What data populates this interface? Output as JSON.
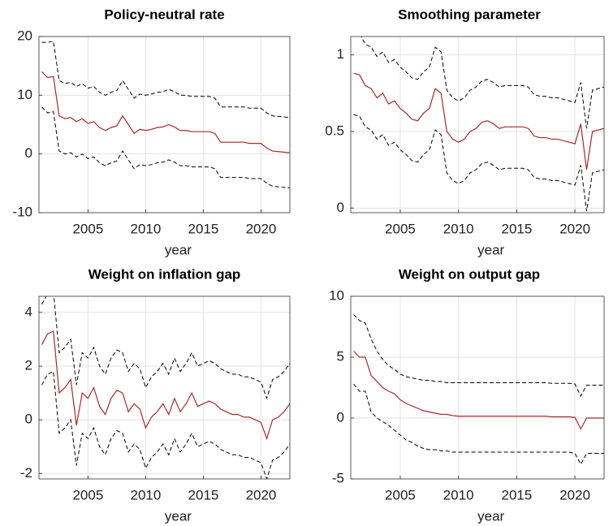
{
  "chart_data": [
    {
      "type": "line",
      "title": "Policy-neutral rate",
      "xlabel": "year",
      "x": [
        2001,
        2001.5,
        2002,
        2002.5,
        2003,
        2003.5,
        2004,
        2004.5,
        2005,
        2005.5,
        2006,
        2006.5,
        2007,
        2007.5,
        2008,
        2008.5,
        2009,
        2009.5,
        2010,
        2010.5,
        2011,
        2011.5,
        2012,
        2012.5,
        2013,
        2013.5,
        2014,
        2014.5,
        2015,
        2015.5,
        2016,
        2016.5,
        2017,
        2017.5,
        2018,
        2018.5,
        2019,
        2019.5,
        2020,
        2020.5,
        2021,
        2021.5,
        2022,
        2022.5
      ],
      "xlim": [
        2000.75,
        2022.5
      ],
      "xticks": [
        2005,
        2010,
        2015,
        2020
      ],
      "ylim": [
        -10,
        20
      ],
      "yticks": [
        -10,
        0,
        10,
        20
      ],
      "grid": true,
      "series": [
        {
          "color": "#000000",
          "linestyle": "dashed",
          "values": [
            19,
            19,
            19.2,
            12.5,
            12,
            12.2,
            11.5,
            12,
            11.2,
            11.5,
            10.5,
            10,
            10.5,
            10.8,
            12.5,
            11,
            9.5,
            10.2,
            10,
            10.2,
            10.5,
            10.6,
            11,
            10.6,
            10,
            10,
            9.8,
            9.8,
            9.8,
            9.8,
            9.5,
            8,
            8,
            8,
            8,
            8,
            7.8,
            7.8,
            7.8,
            7,
            6.5,
            6.4,
            6.3,
            6.2
          ]
        },
        {
          "color": "#000000",
          "linestyle": "dashed",
          "values": [
            8,
            7,
            7.2,
            0.5,
            0,
            0.2,
            -0.5,
            0,
            -0.8,
            -0.5,
            -1.5,
            -2,
            -1.5,
            -1.2,
            0.5,
            -1,
            -2.5,
            -1.8,
            -2,
            -1.8,
            -1.5,
            -1.4,
            -1,
            -1.4,
            -2,
            -2,
            -2.2,
            -2.2,
            -2.2,
            -2.2,
            -2.5,
            -4,
            -4,
            -4,
            -4,
            -4,
            -4.2,
            -4.2,
            -4.2,
            -5,
            -5.5,
            -5.6,
            -5.7,
            -5.8
          ]
        },
        {
          "color": "#a52a2a",
          "linestyle": "solid",
          "values": [
            14,
            13,
            13.2,
            6.5,
            6,
            6.2,
            5.5,
            6,
            5.2,
            5.5,
            4.5,
            4,
            4.5,
            4.8,
            6.5,
            5,
            3.5,
            4.2,
            4,
            4.2,
            4.5,
            4.6,
            5,
            4.6,
            4,
            4,
            3.8,
            3.8,
            3.8,
            3.8,
            3.5,
            2,
            2,
            2,
            2,
            2,
            1.8,
            1.8,
            1.8,
            1,
            0.5,
            0.4,
            0.3,
            0.2
          ]
        }
      ]
    },
    {
      "type": "line",
      "title": "Smoothing parameter",
      "xlabel": "year",
      "x": [
        2001,
        2001.5,
        2002,
        2002.5,
        2003,
        2003.5,
        2004,
        2004.5,
        2005,
        2005.5,
        2006,
        2006.5,
        2007,
        2007.5,
        2008,
        2008.5,
        2009,
        2009.5,
        2010,
        2010.5,
        2011,
        2011.5,
        2012,
        2012.5,
        2013,
        2013.5,
        2014,
        2014.5,
        2015,
        2015.5,
        2016,
        2016.5,
        2017,
        2017.5,
        2018,
        2018.5,
        2019,
        2019.5,
        2020,
        2020.5,
        2021,
        2021.5,
        2022,
        2022.5
      ],
      "xlim": [
        2000.75,
        2022.5
      ],
      "xticks": [
        2005,
        2010,
        2015,
        2020
      ],
      "ylim": [
        -0.03,
        1.12
      ],
      "yticks": [
        0,
        0.5,
        1
      ],
      "grid": true,
      "series": [
        {
          "color": "#000000",
          "linestyle": "dashed",
          "values": [
            1.15,
            1.14,
            1.07,
            1.05,
            0.99,
            1.02,
            0.95,
            0.97,
            0.92,
            0.89,
            0.85,
            0.84,
            0.89,
            0.92,
            1.05,
            1.02,
            0.77,
            0.72,
            0.7,
            0.72,
            0.77,
            0.79,
            0.83,
            0.84,
            0.82,
            0.79,
            0.8,
            0.8,
            0.8,
            0.8,
            0.79,
            0.74,
            0.73,
            0.73,
            0.72,
            0.72,
            0.71,
            0.7,
            0.69,
            0.82,
            0.52,
            0.77,
            0.78,
            0.79
          ]
        },
        {
          "color": "#000000",
          "linestyle": "dashed",
          "values": [
            0.61,
            0.6,
            0.53,
            0.51,
            0.45,
            0.48,
            0.41,
            0.43,
            0.38,
            0.35,
            0.31,
            0.3,
            0.35,
            0.38,
            0.51,
            0.48,
            0.23,
            0.18,
            0.16,
            0.18,
            0.23,
            0.25,
            0.29,
            0.3,
            0.28,
            0.25,
            0.26,
            0.26,
            0.26,
            0.26,
            0.25,
            0.2,
            0.19,
            0.19,
            0.18,
            0.18,
            0.17,
            0.16,
            0.15,
            0.28,
            -0.02,
            0.23,
            0.24,
            0.25
          ]
        },
        {
          "color": "#a52a2a",
          "linestyle": "solid",
          "values": [
            0.88,
            0.87,
            0.8,
            0.78,
            0.72,
            0.75,
            0.68,
            0.7,
            0.65,
            0.62,
            0.58,
            0.57,
            0.62,
            0.65,
            0.78,
            0.75,
            0.5,
            0.45,
            0.43,
            0.45,
            0.5,
            0.52,
            0.56,
            0.57,
            0.55,
            0.52,
            0.53,
            0.53,
            0.53,
            0.53,
            0.52,
            0.47,
            0.46,
            0.46,
            0.45,
            0.45,
            0.44,
            0.43,
            0.42,
            0.55,
            0.25,
            0.5,
            0.51,
            0.52
          ]
        }
      ]
    },
    {
      "type": "line",
      "title": "Weight on inflation gap",
      "xlabel": "year",
      "x": [
        2001,
        2001.5,
        2002,
        2002.5,
        2003,
        2003.5,
        2004,
        2004.5,
        2005,
        2005.5,
        2006,
        2006.5,
        2007,
        2007.5,
        2008,
        2008.5,
        2009,
        2009.5,
        2010,
        2010.5,
        2011,
        2011.5,
        2012,
        2012.5,
        2013,
        2013.5,
        2014,
        2014.5,
        2015,
        2015.5,
        2016,
        2016.5,
        2017,
        2017.5,
        2018,
        2018.5,
        2019,
        2019.5,
        2020,
        2020.5,
        2021,
        2021.5,
        2022,
        2022.5
      ],
      "xlim": [
        2000.75,
        2022.5
      ],
      "xticks": [
        2005,
        2010,
        2015,
        2020
      ],
      "ylim": [
        -2.2,
        4.6
      ],
      "yticks": [
        -2,
        0,
        2,
        4
      ],
      "grid": true,
      "series": [
        {
          "color": "#000000",
          "linestyle": "dashed",
          "values": [
            4.3,
            4.7,
            4.8,
            2.5,
            2.7,
            3,
            1.3,
            2.5,
            2.3,
            2.7,
            2,
            1.7,
            2.3,
            2.6,
            2.5,
            1.8,
            2.1,
            1.9,
            1.2,
            1.6,
            1.8,
            2.1,
            1.7,
            2.3,
            1.8,
            2.1,
            2.5,
            2,
            2.1,
            2.2,
            2.1,
            1.9,
            1.8,
            1.7,
            1.7,
            1.6,
            1.6,
            1.5,
            1.4,
            0.8,
            1.5,
            1.6,
            1.8,
            2.1
          ]
        },
        {
          "color": "#000000",
          "linestyle": "dashed",
          "values": [
            1.3,
            1.7,
            1.8,
            -0.5,
            -0.3,
            0,
            -1.7,
            -0.5,
            -0.7,
            -0.3,
            -1,
            -1.3,
            -0.7,
            -0.4,
            -0.5,
            -1.2,
            -0.9,
            -1.1,
            -1.8,
            -1.4,
            -1.2,
            -0.9,
            -1.3,
            -0.7,
            -1.2,
            -0.9,
            -0.5,
            -1,
            -0.9,
            -0.8,
            -0.9,
            -1.1,
            -1.2,
            -1.3,
            -1.3,
            -1.4,
            -1.4,
            -1.5,
            -1.6,
            -2.2,
            -1.5,
            -1.4,
            -1.2,
            -0.9
          ]
        },
        {
          "color": "#a52a2a",
          "linestyle": "solid",
          "values": [
            2.8,
            3.2,
            3.3,
            1,
            1.2,
            1.5,
            -0.2,
            1,
            0.8,
            1.2,
            0.5,
            0.2,
            0.8,
            1.1,
            1,
            0.3,
            0.6,
            0.4,
            -0.3,
            0.1,
            0.3,
            0.6,
            0.2,
            0.8,
            0.3,
            0.6,
            1,
            0.5,
            0.6,
            0.7,
            0.6,
            0.4,
            0.3,
            0.2,
            0.2,
            0.1,
            0.1,
            0,
            -0.1,
            -0.7,
            0,
            0.1,
            0.3,
            0.6
          ]
        }
      ]
    },
    {
      "type": "line",
      "title": "Weight on output gap",
      "xlabel": "year",
      "x": [
        2001,
        2001.5,
        2002,
        2002.5,
        2003,
        2003.5,
        2004,
        2004.5,
        2005,
        2005.5,
        2006,
        2006.5,
        2007,
        2007.5,
        2008,
        2008.5,
        2009,
        2009.5,
        2010,
        2010.5,
        2011,
        2011.5,
        2012,
        2012.5,
        2013,
        2013.5,
        2014,
        2014.5,
        2015,
        2015.5,
        2016,
        2016.5,
        2017,
        2017.5,
        2018,
        2018.5,
        2019,
        2019.5,
        2020,
        2020.5,
        2021,
        2021.5,
        2022,
        2022.5
      ],
      "xlim": [
        2000.75,
        2022.5
      ],
      "xticks": [
        2005,
        2010,
        2015,
        2020
      ],
      "ylim": [
        -5,
        10
      ],
      "yticks": [
        -5,
        0,
        5,
        10
      ],
      "grid": true,
      "series": [
        {
          "color": "#000000",
          "linestyle": "dashed",
          "values": [
            8.5,
            8,
            7.8,
            6.5,
            5.5,
            4.8,
            4.3,
            4,
            3.6,
            3.4,
            3.3,
            3.2,
            3.1,
            3.1,
            3,
            3,
            2.9,
            2.9,
            2.9,
            2.9,
            2.9,
            2.9,
            2.9,
            2.9,
            2.9,
            2.9,
            2.9,
            2.9,
            2.9,
            2.9,
            2.9,
            2.9,
            2.9,
            2.9,
            2.85,
            2.85,
            2.85,
            2.85,
            2.8,
            1.8,
            2.7,
            2.7,
            2.7,
            2.7
          ]
        },
        {
          "color": "#000000",
          "linestyle": "dashed",
          "values": [
            2.8,
            2.2,
            2.2,
            0.5,
            0,
            -0.3,
            -0.6,
            -1,
            -1.4,
            -1.8,
            -2,
            -2.3,
            -2.5,
            -2.6,
            -2.6,
            -2.7,
            -2.7,
            -2.8,
            -2.8,
            -2.8,
            -2.8,
            -2.8,
            -2.8,
            -2.8,
            -2.8,
            -2.8,
            -2.8,
            -2.8,
            -2.8,
            -2.8,
            -2.8,
            -2.8,
            -2.8,
            -2.8,
            -2.8,
            -2.8,
            -2.8,
            -2.8,
            -2.9,
            -3.8,
            -2.9,
            -2.9,
            -2.9,
            -2.9
          ]
        },
        {
          "color": "#a52a2a",
          "linestyle": "solid",
          "values": [
            5.5,
            5,
            5,
            3.5,
            3,
            2.5,
            2.2,
            2,
            1.5,
            1.2,
            1,
            0.8,
            0.6,
            0.5,
            0.4,
            0.3,
            0.3,
            0.2,
            0.15,
            0.15,
            0.15,
            0.15,
            0.15,
            0.15,
            0.15,
            0.15,
            0.15,
            0.15,
            0.15,
            0.15,
            0.15,
            0.15,
            0.15,
            0.15,
            0.1,
            0.1,
            0.1,
            0.1,
            0.05,
            -0.9,
            0,
            0,
            0,
            0
          ]
        }
      ]
    }
  ]
}
